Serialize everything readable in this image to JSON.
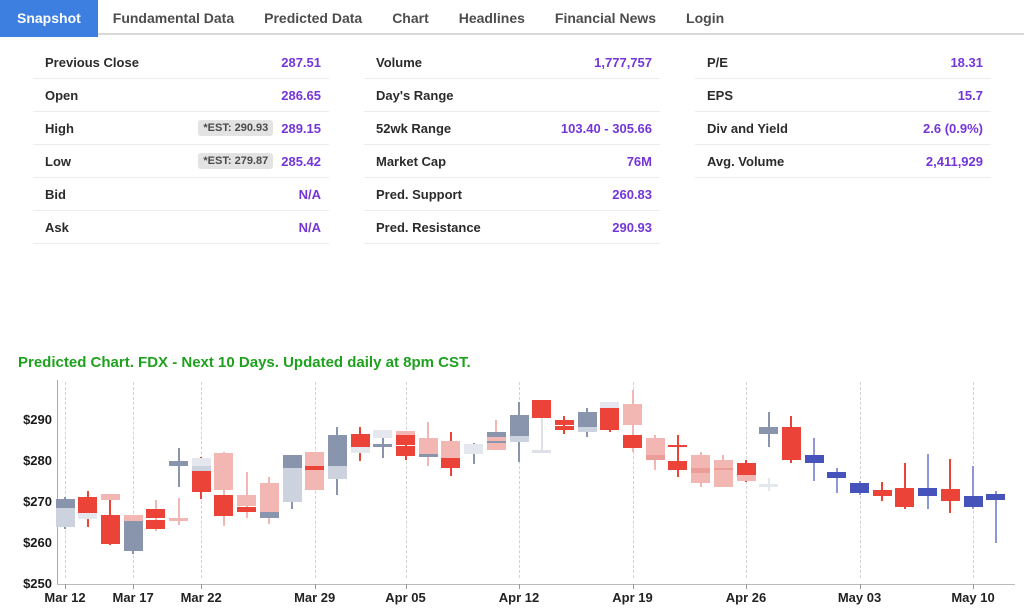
{
  "nav": {
    "tabs": [
      {
        "label": "Snapshot",
        "active": true
      },
      {
        "label": "Fundamental Data",
        "active": false
      },
      {
        "label": "Predicted Data",
        "active": false
      },
      {
        "label": "Chart",
        "active": false
      },
      {
        "label": "Headlines",
        "active": false
      },
      {
        "label": "Financial News",
        "active": false
      },
      {
        "label": "Login",
        "active": false
      }
    ],
    "active_bg": "#3d7fe0"
  },
  "quote": {
    "value_color": "#7436d9",
    "columns": [
      {
        "rows": [
          {
            "label": "Previous Close",
            "value": "287.51"
          },
          {
            "label": "Open",
            "value": "286.65"
          },
          {
            "label": "High",
            "badge": "*EST: 290.93",
            "value": "289.15"
          },
          {
            "label": "Low",
            "badge": "*EST: 279.87",
            "value": "285.42"
          },
          {
            "label": "Bid",
            "value": "N/A"
          },
          {
            "label": "Ask",
            "value": "N/A"
          }
        ]
      },
      {
        "rows": [
          {
            "label": "Volume",
            "value": "1,777,757"
          },
          {
            "label": "Day's Range",
            "value": ""
          },
          {
            "label": "52wk Range",
            "value": "103.40 - 305.66"
          },
          {
            "label": "Market Cap",
            "value": "76M"
          },
          {
            "label": "Pred. Support",
            "value": "260.83"
          },
          {
            "label": "Pred. Resistance",
            "value": "290.93"
          }
        ]
      },
      {
        "rows": [
          {
            "label": "P/E",
            "value": "18.31"
          },
          {
            "label": "EPS",
            "value": "15.7"
          },
          {
            "label": "Div and Yield",
            "value": "2.6 (0.9%)"
          },
          {
            "label": "Avg. Volume",
            "value": "2,411,929"
          }
        ]
      }
    ]
  },
  "chart": {
    "title": "Predicted Chart. FDX - Next 10 Days. Updated daily at 8pm CST.",
    "title_color": "#1ea21e"
  },
  "chart_data": {
    "type": "candlestick",
    "symbol": "FDX",
    "y_axis": {
      "min": 250,
      "max": 290,
      "tick_prices": [
        290,
        280,
        270,
        260,
        250
      ],
      "tick_labels": [
        "$290",
        "$280",
        "$270",
        "$260",
        "$250"
      ]
    },
    "x_axis": {
      "ticks": [
        {
          "index": 0,
          "label": "Mar 12"
        },
        {
          "index": 3,
          "label": "Mar 17"
        },
        {
          "index": 6,
          "label": "Mar 22"
        },
        {
          "index": 11,
          "label": "Mar 29"
        },
        {
          "index": 15,
          "label": "Apr 05"
        },
        {
          "index": 20,
          "label": "Apr 12"
        },
        {
          "index": 25,
          "label": "Apr 19"
        },
        {
          "index": 30,
          "label": "Apr 26"
        },
        {
          "index": 35,
          "label": "May 03"
        },
        {
          "index": 40,
          "label": "May 10"
        }
      ]
    },
    "palette": {
      "red": "#ec4339",
      "pink": "#f3b7b3",
      "midpink": "#eb9e98",
      "slate": "#8995ac",
      "gray": "#ccd3de",
      "palegray": "#e4e7ed",
      "blue": "#4553bb",
      "bluelight": "#8d97d8",
      "graylight": "#dde1e7"
    },
    "candles": [
      [
        [
          "w",
          263.5,
          271.3,
          "slate"
        ],
        [
          "b",
          263.8,
          268.6,
          "gray"
        ],
        [
          "b",
          268.6,
          270.7,
          "slate"
        ]
      ],
      [
        [
          "w",
          264.0,
          272.8,
          "red"
        ],
        [
          "b",
          265.8,
          267.4,
          "palegray"
        ],
        [
          "b",
          267.4,
          271.2,
          "red"
        ]
      ],
      [
        [
          "w",
          259.5,
          270.5,
          "red"
        ],
        [
          "b",
          270.4,
          271.9,
          "pink"
        ],
        [
          "b",
          259.8,
          266.8,
          "red"
        ]
      ],
      [
        [
          "w",
          257.2,
          266.8,
          "slate"
        ],
        [
          "b",
          265.3,
          266.9,
          "pink"
        ],
        [
          "b",
          258.0,
          265.3,
          "slate"
        ]
      ],
      [
        [
          "w",
          263.0,
          270.6,
          "pink"
        ],
        [
          "b",
          266.0,
          268.4,
          "red"
        ],
        [
          "b",
          263.3,
          265.7,
          "red"
        ]
      ],
      [
        [
          "w",
          273.7,
          283.2,
          "slate"
        ],
        [
          "b",
          278.7,
          279.9,
          "slate"
        ],
        [
          "w",
          264.5,
          271.0,
          "pink"
        ],
        [
          "b",
          265.4,
          266.2,
          "pink"
        ]
      ],
      [
        [
          "w",
          270.7,
          281.0,
          "red"
        ],
        [
          "b",
          278.8,
          280.7,
          "palegray"
        ],
        [
          "b",
          277.5,
          278.8,
          "gray"
        ],
        [
          "b",
          272.4,
          277.5,
          "red"
        ]
      ],
      [
        [
          "w",
          264.2,
          282.3,
          "pink"
        ],
        [
          "b",
          273.0,
          282.0,
          "pink"
        ],
        [
          "b",
          266.5,
          271.8,
          "red"
        ]
      ],
      [
        [
          "w",
          266.2,
          277.4,
          "pink"
        ],
        [
          "b",
          268.9,
          271.8,
          "pink"
        ],
        [
          "b",
          267.5,
          268.8,
          "red"
        ]
      ],
      [
        [
          "w",
          264.6,
          276.2,
          "pink"
        ],
        [
          "b",
          267.5,
          274.7,
          "pink"
        ],
        [
          "b",
          266.0,
          267.5,
          "slate"
        ]
      ],
      [
        [
          "w",
          268.2,
          281.5,
          "slate"
        ],
        [
          "b",
          278.4,
          281.4,
          "slate"
        ],
        [
          "b",
          270.1,
          278.4,
          "gray"
        ]
      ],
      [
        [
          "b",
          273.0,
          282.2,
          "pink"
        ],
        [
          "b",
          277.9,
          278.7,
          "red"
        ]
      ],
      [
        [
          "w",
          271.7,
          288.3,
          "slate"
        ],
        [
          "b",
          278.8,
          286.3,
          "slate"
        ],
        [
          "b",
          275.5,
          278.8,
          "gray"
        ]
      ],
      [
        [
          "w",
          280.0,
          288.3,
          "red"
        ],
        [
          "b",
          283.3,
          286.7,
          "red"
        ],
        [
          "b",
          282.0,
          283.3,
          "palegray"
        ]
      ],
      [
        [
          "w",
          280.8,
          287.0,
          "slate"
        ],
        [
          "b",
          285.5,
          287.5,
          "palegray"
        ],
        [
          "b",
          283.4,
          284.2,
          "slate"
        ]
      ],
      [
        [
          "w",
          280.3,
          287.3,
          "red"
        ],
        [
          "b",
          286.3,
          287.4,
          "pink"
        ],
        [
          "b",
          284.0,
          286.3,
          "red"
        ],
        [
          "b",
          281.3,
          283.7,
          "red"
        ]
      ],
      [
        [
          "w",
          278.8,
          289.5,
          "pink"
        ],
        [
          "b",
          281.8,
          285.5,
          "pink"
        ],
        [
          "b",
          281.0,
          281.8,
          "slate"
        ]
      ],
      [
        [
          "w",
          276.3,
          287.0,
          "red"
        ],
        [
          "b",
          280.8,
          285.0,
          "pink"
        ],
        [
          "b",
          278.3,
          280.8,
          "red"
        ]
      ],
      [
        [
          "w",
          279.2,
          284.5,
          "slate"
        ],
        [
          "b",
          281.8,
          284.2,
          "palegray"
        ]
      ],
      [
        [
          "w",
          283.0,
          290.0,
          "pink"
        ],
        [
          "b",
          282.7,
          287.0,
          "pink"
        ],
        [
          "b",
          285.9,
          287.0,
          "slate"
        ],
        [
          "b",
          284.3,
          284.9,
          "slate"
        ]
      ],
      [
        [
          "w",
          279.8,
          294.5,
          "slate"
        ],
        [
          "b",
          286.0,
          291.3,
          "slate"
        ],
        [
          "b",
          284.7,
          286.0,
          "gray"
        ]
      ],
      [
        [
          "w",
          282.0,
          290.5,
          "graylight"
        ],
        [
          "b",
          281.9,
          282.6,
          "graylight"
        ],
        [
          "b",
          290.5,
          294.8,
          "red"
        ]
      ],
      [
        [
          "w",
          286.5,
          291.0,
          "red"
        ],
        [
          "b",
          288.9,
          290.0,
          "red"
        ],
        [
          "b",
          287.6,
          288.6,
          "red"
        ]
      ],
      [
        [
          "w",
          285.9,
          293.0,
          "slate"
        ],
        [
          "b",
          288.3,
          292.0,
          "slate"
        ],
        [
          "b",
          287.0,
          288.3,
          "gray"
        ]
      ],
      [
        [
          "w",
          287.0,
          294.4,
          "red"
        ],
        [
          "b",
          293.0,
          294.3,
          "palegray"
        ],
        [
          "b",
          287.5,
          293.0,
          "red"
        ]
      ],
      [
        [
          "w",
          282.2,
          297.3,
          "pink"
        ],
        [
          "b",
          288.7,
          293.9,
          "pink"
        ],
        [
          "b",
          283.2,
          286.4,
          "red"
        ]
      ],
      [
        [
          "w",
          277.9,
          286.4,
          "pink"
        ],
        [
          "b",
          280.3,
          285.6,
          "pink"
        ],
        [
          "b",
          280.3,
          281.5,
          "midpink"
        ]
      ],
      [
        [
          "w",
          276.2,
          286.4,
          "red"
        ],
        [
          "b",
          283.4,
          284.0,
          "red"
        ],
        [
          "b",
          277.9,
          279.9,
          "red"
        ]
      ],
      [
        [
          "w",
          273.7,
          282.2,
          "pink"
        ],
        [
          "b",
          274.7,
          281.5,
          "pink"
        ],
        [
          "b",
          277.0,
          278.2,
          "midpink"
        ]
      ],
      [
        [
          "w",
          273.7,
          281.5,
          "pink"
        ],
        [
          "b",
          273.7,
          280.3,
          "pink"
        ],
        [
          "b",
          277.9,
          278.4,
          "midpink"
        ]
      ],
      [
        [
          "w",
          274.8,
          280.2,
          "red"
        ],
        [
          "b",
          276.7,
          279.6,
          "red"
        ],
        [
          "b",
          275.0,
          276.7,
          "pink"
        ]
      ],
      [
        [
          "w",
          283.4,
          292.0,
          "slate"
        ],
        [
          "b",
          286.6,
          288.3,
          "slate"
        ],
        [
          "w",
          272.8,
          275.8,
          "palegray"
        ],
        [
          "b",
          273.6,
          274.4,
          "palegray"
        ]
      ],
      [
        [
          "w",
          279.5,
          291.0,
          "red"
        ],
        [
          "b",
          280.3,
          288.3,
          "red"
        ]
      ],
      [
        [
          "w",
          275.2,
          285.6,
          "bluelight"
        ],
        [
          "b",
          279.6,
          281.5,
          "blue"
        ]
      ],
      [
        [
          "w",
          272.3,
          278.2,
          "bluelight"
        ],
        [
          "b",
          275.8,
          277.2,
          "blue"
        ]
      ],
      [
        [
          "w",
          271.8,
          275.2,
          "bluelight"
        ],
        [
          "b",
          272.3,
          274.7,
          "blue"
        ]
      ],
      [
        [
          "w",
          270.2,
          275.0,
          "red"
        ],
        [
          "b",
          271.4,
          273.0,
          "red"
        ]
      ],
      [
        [
          "w",
          268.2,
          279.6,
          "red"
        ],
        [
          "b",
          268.8,
          273.5,
          "red"
        ]
      ],
      [
        [
          "w",
          268.2,
          281.8,
          "bluelight"
        ],
        [
          "b",
          271.5,
          273.5,
          "blue"
        ]
      ],
      [
        [
          "w",
          267.2,
          280.6,
          "red"
        ],
        [
          "b",
          270.2,
          273.2,
          "red"
        ]
      ],
      [
        [
          "w",
          268.2,
          278.7,
          "bluelight"
        ],
        [
          "b",
          268.9,
          271.4,
          "blue"
        ]
      ],
      [
        [
          "w",
          260.0,
          272.8,
          "bluelight"
        ],
        [
          "b",
          270.4,
          271.9,
          "blue"
        ]
      ]
    ]
  }
}
